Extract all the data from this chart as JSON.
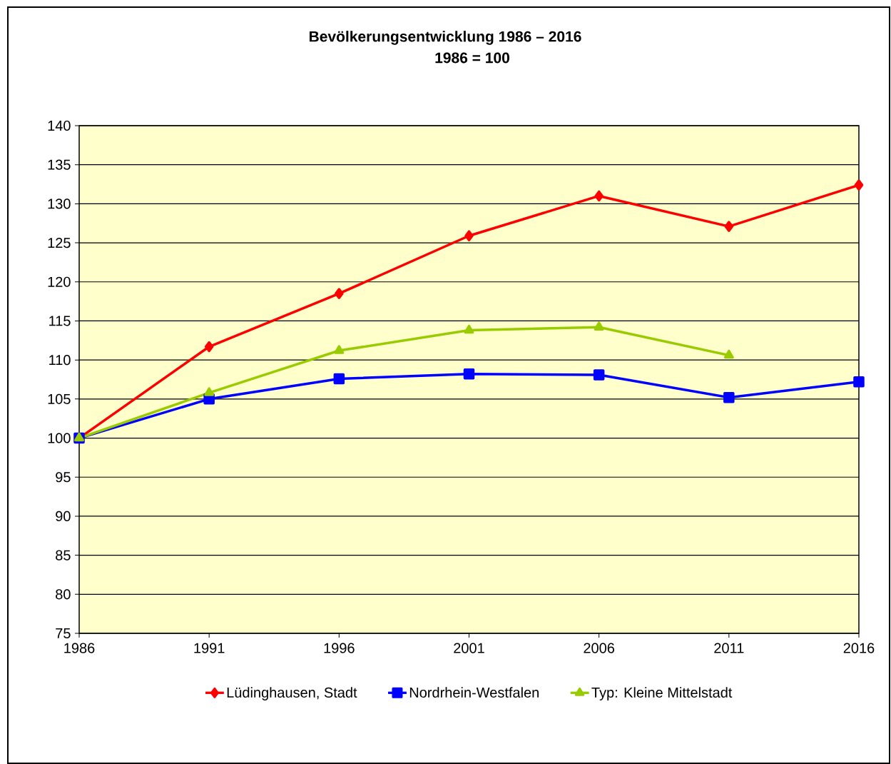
{
  "chart_data": {
    "type": "line",
    "title": "Bevölkerungsentwicklung 1986 – 2016",
    "subtitle": "1986 = 100",
    "x": [
      1986,
      1991,
      1996,
      2001,
      2006,
      2011,
      2016
    ],
    "series": [
      {
        "name": "Lüdinghausen, Stadt",
        "color": "#ff0000",
        "marker": "diamond",
        "values": [
          100,
          111.7,
          118.5,
          125.9,
          131.0,
          127.1,
          132.4
        ]
      },
      {
        "name": "Nordrhein-Westfalen",
        "color": "#0000ff",
        "marker": "square",
        "values": [
          100,
          105.0,
          107.6,
          108.2,
          108.1,
          105.2,
          107.2
        ]
      },
      {
        "name": "Typ: Kleine Mittelstadt",
        "color": "#99cc00",
        "marker": "triangle",
        "values": [
          100,
          105.8,
          111.2,
          113.8,
          114.2,
          110.6,
          null
        ]
      }
    ],
    "xlim": [
      1986,
      2016
    ],
    "xticks": [
      1986,
      1991,
      1996,
      2001,
      2006,
      2011,
      2016
    ],
    "ylim": [
      75,
      140
    ],
    "yticks": [
      75,
      80,
      85,
      90,
      95,
      100,
      105,
      110,
      115,
      120,
      125,
      130,
      135,
      140
    ],
    "grid": "y",
    "legend": "bottom",
    "line_style": "solid"
  }
}
